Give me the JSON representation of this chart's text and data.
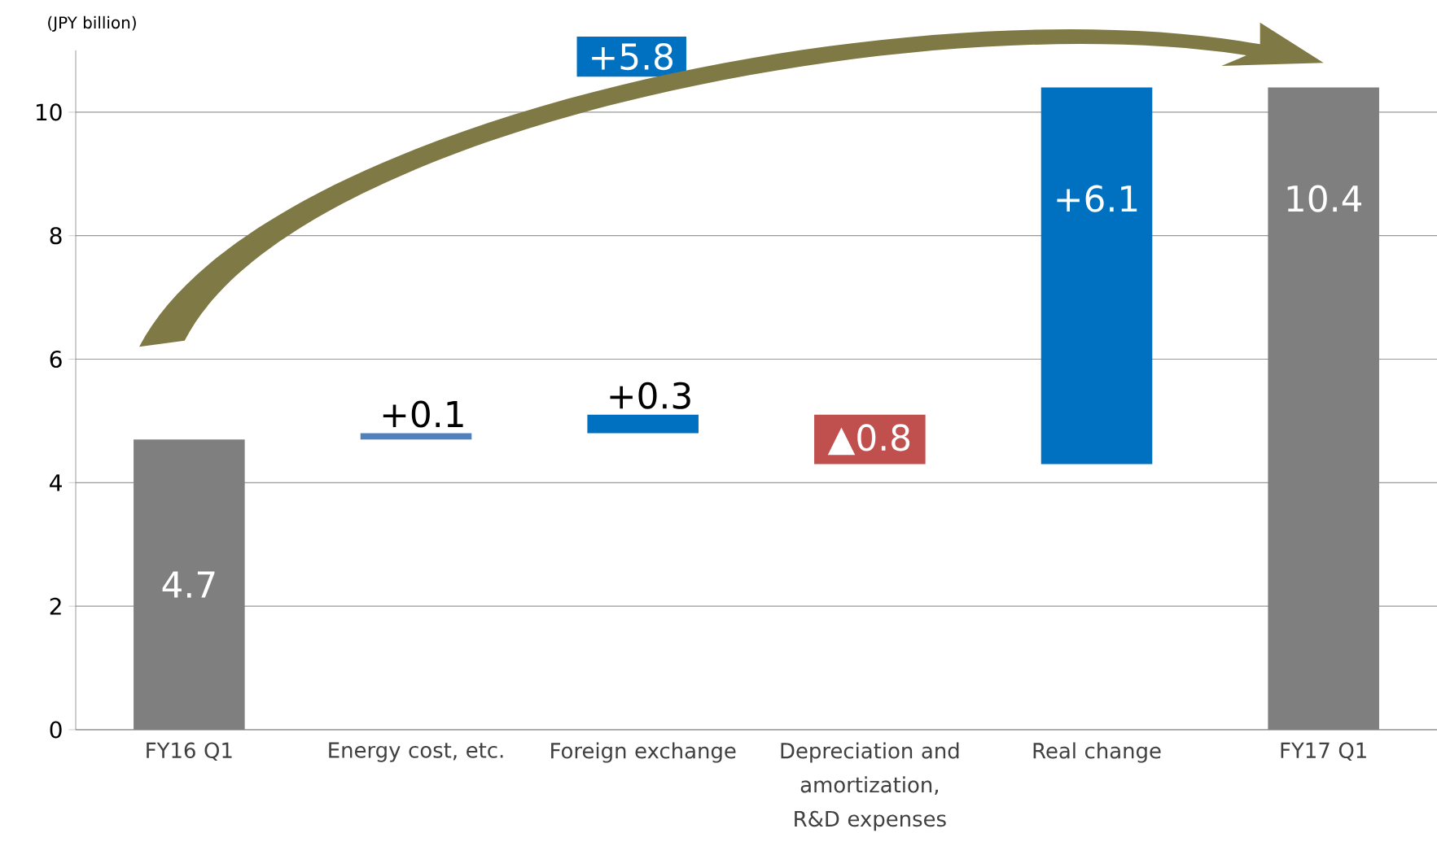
{
  "chart_data": {
    "type": "bar",
    "ylabel": "(JPY billion)",
    "categories": [
      "FY16 Q1",
      "Energy cost, etc.",
      "Foreign exchange",
      "Depreciation and amortization, R&D expenses",
      "Real change",
      "FY17 Q1"
    ],
    "values": [
      4.7,
      0.1,
      0.3,
      -0.8,
      6.1,
      10.4
    ],
    "base": [
      0,
      4.7,
      4.8,
      5.1,
      4.3,
      0
    ],
    "colors": [
      "#7f7f7f",
      "#4f81bd",
      "#0070c0",
      "#c0504d",
      "#0070c0",
      "#7f7f7f"
    ],
    "value_labels": [
      "4.7",
      "+0.1",
      "+0.3",
      "▲0.8",
      "+6.1",
      "10.4"
    ],
    "annotations": [
      "+5.8"
    ],
    "ylim": [
      0,
      11
    ],
    "yticks": [
      0,
      2,
      4,
      6,
      8,
      10
    ],
    "grid": "y"
  }
}
